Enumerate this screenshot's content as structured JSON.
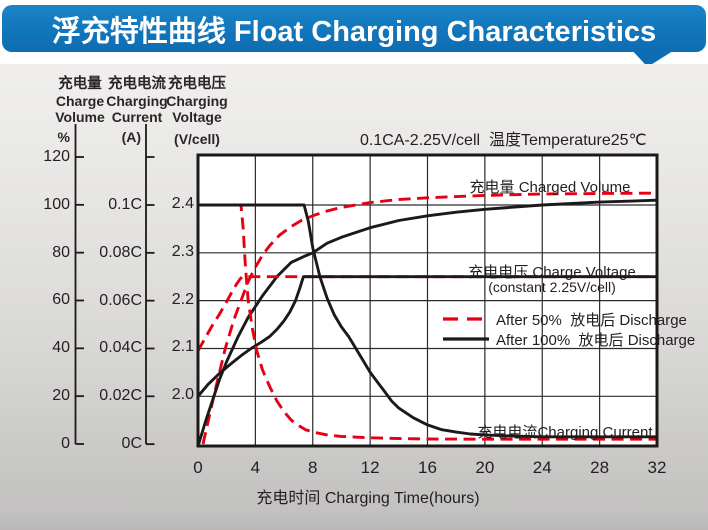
{
  "header": {
    "title": "浮充特性曲线 Float Charging Characteristics"
  },
  "colors": {
    "banner_blue": "#1176bb",
    "series_red": "#e60014",
    "series_black": "#1c1a19",
    "grid": "#2b2b2b",
    "text": "#231f20"
  },
  "axes": {
    "percent": {
      "title_lines": [
        "充电量",
        "Charge",
        "Volume"
      ],
      "unit": "%",
      "ticks": [
        "120",
        "100",
        "80",
        "60",
        "40",
        "20",
        "0"
      ]
    },
    "current": {
      "title_lines": [
        "充电电流",
        "Charging",
        "Current"
      ],
      "unit": "(A)",
      "ticks": [
        "0.1C",
        "0.08C",
        "0.06C",
        "0.04C",
        "0.02C",
        "0C"
      ]
    },
    "voltage": {
      "title_lines": [
        "充电电压",
        "Charging",
        "Voltage"
      ],
      "unit": "(V/cell)",
      "ticks": [
        "2.4",
        "2.3",
        "2.2",
        "2.1",
        "2.0"
      ]
    }
  },
  "annotations": {
    "charged_volume": "充电量 Charged Volume",
    "charge_voltage_line1": "充电电压 Charge Voltage",
    "charge_voltage_line2": "(constant 2.25V/cell)",
    "charging_current": "充电电流Charging Current"
  },
  "chart_data": {
    "type": "line",
    "title": "浮充特性曲线 Float Charging Characteristics",
    "condition": "0.1CA-2.25V/cell  温度Temperature25℃",
    "xlabel": "充电时间 Charging Time(hours)",
    "x_ticks": [
      0,
      4,
      8,
      12,
      16,
      20,
      24,
      28,
      32
    ],
    "xlim": [
      0,
      32
    ],
    "y_axes": {
      "percent": {
        "label": "充电量 Charge Volume %",
        "range": [
          0,
          125
        ]
      },
      "current": {
        "label": "充电电流 Charging Current (A)",
        "range": [
          0,
          0.125
        ]
      },
      "voltage": {
        "label": "充电电压 Charging Voltage (V/cell)",
        "range": [
          1.95,
          2.45
        ],
        "gridlines": [
          2.4,
          2.3,
          2.2,
          2.1,
          2.0
        ]
      }
    },
    "grid": true,
    "legend_position": "middle-right",
    "legend": [
      {
        "label": "After 50%  放电后 Discharge",
        "style": "dashed",
        "color": "#e60014"
      },
      {
        "label": "After 100%  放电后 Discharge",
        "style": "solid",
        "color": "#1c1a19"
      }
    ],
    "series": [
      {
        "name": "charged_volume_after_50pct_discharge",
        "axis": "percent",
        "style": "dashed",
        "color": "#e60014",
        "points": [
          [
            0.35,
            0
          ],
          [
            0.8,
            12
          ],
          [
            1.3,
            25
          ],
          [
            1.9,
            40
          ],
          [
            2.5,
            52
          ],
          [
            3.0,
            60
          ],
          [
            3.5,
            68
          ],
          [
            4.0,
            74
          ],
          [
            4.5,
            79
          ],
          [
            5.0,
            83
          ],
          [
            5.7,
            87.5
          ],
          [
            6.5,
            91
          ],
          [
            7.2,
            93.5
          ],
          [
            8,
            95.5
          ],
          [
            9,
            97.5
          ],
          [
            10,
            99
          ],
          [
            12,
            101
          ],
          [
            14,
            102.3
          ],
          [
            16,
            103
          ],
          [
            20,
            104
          ],
          [
            24,
            104.6
          ],
          [
            28,
            104.8
          ],
          [
            32,
            105
          ]
        ]
      },
      {
        "name": "charged_volume_after_100pct_discharge",
        "axis": "percent",
        "style": "solid",
        "color": "#1c1a19",
        "points": [
          [
            0.05,
            0
          ],
          [
            0.5,
            9
          ],
          [
            1,
            18
          ],
          [
            1.5,
            27
          ],
          [
            2,
            34.5
          ],
          [
            2.8,
            45
          ],
          [
            3.5,
            53
          ],
          [
            4.5,
            62
          ],
          [
            5.5,
            70
          ],
          [
            6.5,
            76
          ],
          [
            7.4,
            78.5
          ],
          [
            8,
            80
          ],
          [
            9,
            84
          ],
          [
            10,
            86.5
          ],
          [
            12,
            90.5
          ],
          [
            14,
            93.5
          ],
          [
            16,
            95.5
          ],
          [
            18,
            97
          ],
          [
            20,
            98.2
          ],
          [
            24,
            100
          ],
          [
            28,
            101.2
          ],
          [
            32,
            102
          ]
        ]
      },
      {
        "name": "charge_voltage_after_50pct_discharge",
        "axis": "voltage",
        "style": "dashed",
        "color": "#e60014",
        "points": [
          [
            0,
            2.095
          ],
          [
            0.5,
            2.122
          ],
          [
            1,
            2.148
          ],
          [
            1.5,
            2.172
          ],
          [
            2,
            2.198
          ],
          [
            2.4,
            2.22
          ],
          [
            2.7,
            2.235
          ],
          [
            2.95,
            2.246
          ],
          [
            3.1,
            2.25
          ],
          [
            32,
            2.25
          ]
        ]
      },
      {
        "name": "charge_voltage_after_100pct_discharge",
        "axis": "voltage",
        "style": "solid",
        "color": "#1c1a19",
        "points": [
          [
            0,
            2.0
          ],
          [
            0.7,
            2.025
          ],
          [
            1.5,
            2.048
          ],
          [
            2.3,
            2.068
          ],
          [
            3.0,
            2.085
          ],
          [
            3.7,
            2.1
          ],
          [
            4.4,
            2.113
          ],
          [
            5.0,
            2.125
          ],
          [
            5.5,
            2.14
          ],
          [
            6.0,
            2.158
          ],
          [
            6.4,
            2.176
          ],
          [
            6.8,
            2.2
          ],
          [
            7.1,
            2.226
          ],
          [
            7.35,
            2.25
          ],
          [
            32,
            2.25
          ]
        ]
      },
      {
        "name": "charging_current_after_50pct_discharge",
        "axis": "current",
        "style": "dashed",
        "color": "#e60014",
        "points": [
          [
            0,
            0.1
          ],
          [
            3.0,
            0.1
          ],
          [
            3.15,
            0.09
          ],
          [
            3.3,
            0.075
          ],
          [
            3.5,
            0.06
          ],
          [
            3.8,
            0.048
          ],
          [
            4.1,
            0.039
          ],
          [
            4.5,
            0.031
          ],
          [
            5.0,
            0.024
          ],
          [
            5.5,
            0.018
          ],
          [
            6.0,
            0.0135
          ],
          [
            6.5,
            0.01
          ],
          [
            7.0,
            0.0078
          ],
          [
            7.5,
            0.006
          ],
          [
            8,
            0.005
          ],
          [
            9,
            0.0038
          ],
          [
            10,
            0.0032
          ],
          [
            12,
            0.0026
          ],
          [
            14,
            0.0023
          ],
          [
            16,
            0.0021
          ],
          [
            20,
            0.002
          ],
          [
            24,
            0.002
          ],
          [
            28,
            0.002
          ],
          [
            32,
            0.002
          ]
        ]
      },
      {
        "name": "charging_current_after_100pct_discharge",
        "axis": "current",
        "style": "solid",
        "color": "#1c1a19",
        "points": [
          [
            0,
            0.1
          ],
          [
            7.4,
            0.1
          ],
          [
            7.7,
            0.093
          ],
          [
            8,
            0.082
          ],
          [
            8.5,
            0.07
          ],
          [
            9,
            0.061
          ],
          [
            9.5,
            0.054
          ],
          [
            10,
            0.049
          ],
          [
            10.5,
            0.045
          ],
          [
            11,
            0.04
          ],
          [
            11.5,
            0.035
          ],
          [
            12,
            0.03
          ],
          [
            12.5,
            0.026
          ],
          [
            13,
            0.022
          ],
          [
            13.5,
            0.018
          ],
          [
            14,
            0.015
          ],
          [
            15,
            0.011
          ],
          [
            16,
            0.008
          ],
          [
            17,
            0.006
          ],
          [
            18,
            0.005
          ],
          [
            19,
            0.0042
          ],
          [
            20,
            0.0038
          ],
          [
            22,
            0.0033
          ],
          [
            24,
            0.003
          ],
          [
            28,
            0.003
          ],
          [
            32,
            0.003
          ]
        ]
      }
    ]
  }
}
